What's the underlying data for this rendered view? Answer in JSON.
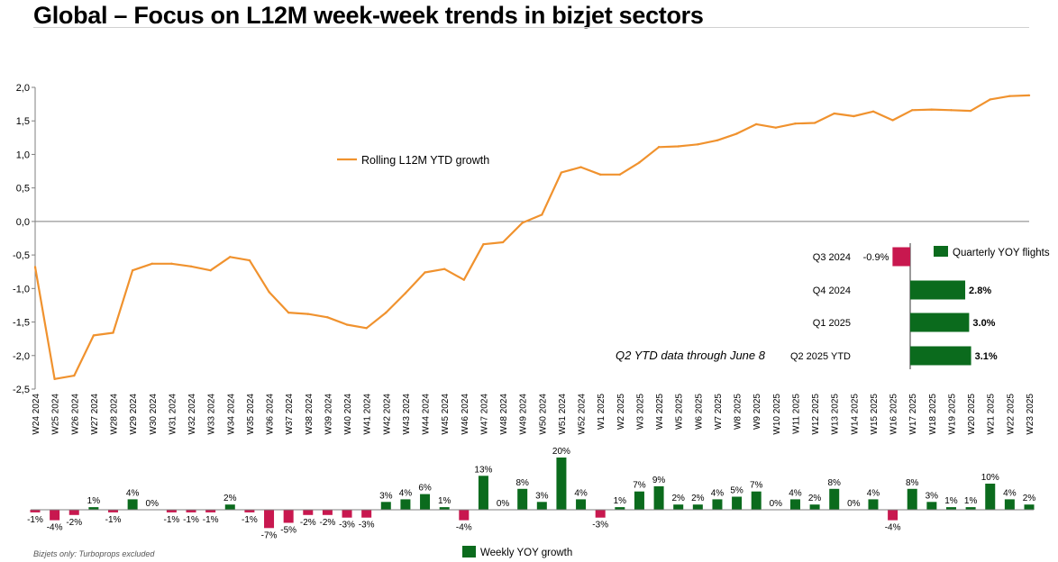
{
  "title": "Global – Focus on L12M week-week trends in bizjet sectors",
  "footnote": "Bizjets only: Turboprops excluded",
  "q2_note": "Q2 YTD data through June 8",
  "colors": {
    "line": "#f0922e",
    "positive": "#0b6b1d",
    "negative": "#c8184f",
    "axis": "#7f7f7f"
  },
  "chart_data": [
    {
      "type": "line",
      "series": [
        {
          "name": "Rolling L12M YTD growth",
          "values": [
            -0.68,
            -2.35,
            -2.3,
            -1.7,
            -1.66,
            -0.73,
            -0.63,
            -0.63,
            -0.67,
            -0.73,
            -0.53,
            -0.58,
            -1.05,
            -1.36,
            -1.38,
            -1.43,
            -1.54,
            -1.59,
            -1.36,
            -1.07,
            -0.76,
            -0.71,
            -0.87,
            -0.34,
            -0.31,
            -0.02,
            0.1,
            0.73,
            0.81,
            0.7,
            0.7,
            0.88,
            1.11,
            1.12,
            1.15,
            1.21,
            1.31,
            1.45,
            1.4,
            1.46,
            1.47,
            1.61,
            1.57,
            1.64,
            1.51,
            1.66,
            1.67,
            1.66,
            1.65,
            1.82,
            1.87,
            1.88
          ]
        }
      ],
      "categories": [
        "W24 2024",
        "W25 2024",
        "W26 2024",
        "W27 2024",
        "W28 2024",
        "W29 2024",
        "W30 2024",
        "W31 2024",
        "W32 2024",
        "W33 2024",
        "W34 2024",
        "W35 2024",
        "W36 2024",
        "W37 2024",
        "W38 2024",
        "W39 2024",
        "W40 2024",
        "W41 2024",
        "W42 2024",
        "W43 2024",
        "W44 2024",
        "W45 2024",
        "W46 2024",
        "W47 2024",
        "W48 2024",
        "W49 2024",
        "W50 2024",
        "W51 2024",
        "W52 2024",
        "W1 2025",
        "W2 2025",
        "W3 2025",
        "W4 2025",
        "W5 2025",
        "W6 2025",
        "W7 2025",
        "W8 2025",
        "W9 2025",
        "W10 2025",
        "W11 2025",
        "W12 2025",
        "W13 2025",
        "W14 2025",
        "W15 2025",
        "W16 2025",
        "W17 2025",
        "W18 2025",
        "W19 2025",
        "W20 2025",
        "W21 2025",
        "W22 2025",
        "W23 2025"
      ],
      "ylim": [
        -2.5,
        2.0
      ],
      "yticks": [
        "2,0",
        "1,5",
        "1,0",
        "0,5",
        "0,0",
        "-0,5",
        "-1,0",
        "-1,5",
        "-2,0",
        "-2,5"
      ],
      "legend": "upper-left"
    },
    {
      "type": "bar",
      "orientation": "horizontal",
      "series": [
        {
          "name": "Quarterly YOY flights"
        }
      ],
      "categories": [
        "Q3 2024",
        "Q4 2024",
        "Q1 2025",
        "Q2 2025 YTD"
      ],
      "values": [
        -0.9,
        2.8,
        3.0,
        3.1
      ],
      "labels": [
        "-0.9%",
        "2.8%",
        "3.0%",
        "3.1%"
      ]
    },
    {
      "type": "bar",
      "series": [
        {
          "name": "Weekly YOY growth"
        }
      ],
      "values": [
        -1,
        -4,
        -2,
        1,
        -1,
        4,
        0,
        -1,
        -1,
        -1,
        2,
        -1,
        -7,
        -5,
        -2,
        -2,
        -3,
        -3,
        3,
        4,
        6,
        1,
        -4,
        13,
        0,
        8,
        3,
        20,
        4,
        -3,
        1,
        7,
        9,
        2,
        2,
        4,
        5,
        7,
        0,
        4,
        2,
        8,
        0,
        4,
        -4,
        8,
        3,
        1,
        1,
        10,
        4,
        2
      ],
      "labels": [
        "-1%",
        "-4%",
        "-2%",
        "1%",
        "-1%",
        "4%",
        "0%",
        "-1%",
        "-1%",
        "-1%",
        "2%",
        "-1%",
        "-7%",
        "-5%",
        "-2%",
        "-2%",
        "-3%",
        "-3%",
        "3%",
        "4%",
        "6%",
        "1%",
        "-4%",
        "13%",
        "0%",
        "8%",
        "3%",
        "20%",
        "4%",
        "-3%",
        "1%",
        "7%",
        "9%",
        "2%",
        "2%",
        "4%",
        "5%",
        "7%",
        "0%",
        "4%",
        "2%",
        "8%",
        "0%",
        "4%",
        "-4%",
        "8%",
        "3%",
        "1%",
        "1%",
        "10%",
        "4%",
        "2%"
      ]
    }
  ]
}
